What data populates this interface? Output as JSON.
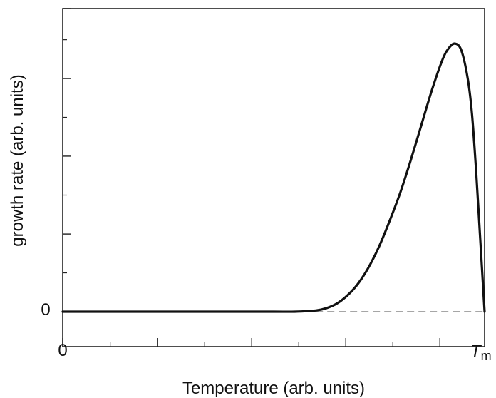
{
  "chart_data": {
    "type": "line",
    "title": "",
    "xlabel": "Temperature (arb. units)",
    "ylabel": "growth rate (arb. units)",
    "x_tick_labels": {
      "origin": "0",
      "end_main": "T",
      "end_sub": "m"
    },
    "y_tick_labels": {
      "zero": "0"
    },
    "xlim": [
      0,
      1
    ],
    "ylim": [
      -0.15,
      1.3
    ],
    "baseline": {
      "y": 0,
      "style": "dashed",
      "x_start": 0.6,
      "x_end": 1.0
    },
    "series": [
      {
        "x": [
          0.0,
          0.1,
          0.2,
          0.3,
          0.4,
          0.5,
          0.55,
          0.6,
          0.625,
          0.65,
          0.675,
          0.7,
          0.725,
          0.75,
          0.775,
          0.8,
          0.825,
          0.85,
          0.875,
          0.9,
          0.915,
          0.93,
          0.945,
          0.96,
          0.97,
          0.98,
          0.99,
          1.0
        ],
        "values": [
          0,
          0,
          0,
          0,
          0,
          0,
          0.0,
          0.005,
          0.015,
          0.035,
          0.07,
          0.12,
          0.19,
          0.28,
          0.39,
          0.51,
          0.65,
          0.8,
          0.95,
          1.08,
          1.13,
          1.15,
          1.12,
          1.0,
          0.85,
          0.6,
          0.3,
          0.0
        ]
      }
    ],
    "colors": {
      "line": "#111111",
      "axis": "#222222",
      "baseline": "#888888"
    }
  }
}
